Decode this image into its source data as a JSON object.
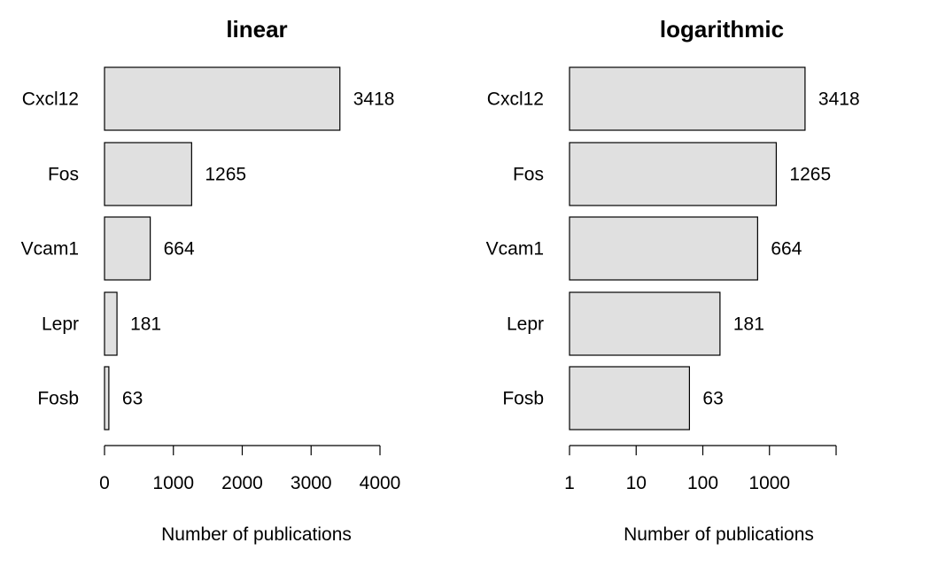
{
  "chart_data": [
    {
      "type": "bar",
      "orientation": "horizontal",
      "title": "linear",
      "scale": "linear",
      "categories": [
        "Cxcl12",
        "Fos",
        "Vcam1",
        "Lepr",
        "Fosb"
      ],
      "values": [
        3418,
        1265,
        664,
        181,
        63
      ],
      "value_labels": [
        "3418",
        "1265",
        "664",
        "181",
        "63"
      ],
      "xlim": [
        0,
        4000
      ],
      "xticks": [
        0,
        1000,
        2000,
        3000,
        4000
      ],
      "xtick_labels": [
        "0",
        "1000",
        "2000",
        "3000",
        "4000"
      ],
      "xlabel": "Number of publications",
      "ylabel": "",
      "grid": false,
      "bar_color": "#e0e0e0"
    },
    {
      "type": "bar",
      "orientation": "horizontal",
      "title": "logarithmic",
      "scale": "log",
      "categories": [
        "Cxcl12",
        "Fos",
        "Vcam1",
        "Lepr",
        "Fosb"
      ],
      "values": [
        3418,
        1265,
        664,
        181,
        63
      ],
      "value_labels": [
        "3418",
        "1265",
        "664",
        "181",
        "63"
      ],
      "xlim": [
        1,
        10000
      ],
      "xticks": [
        1,
        10,
        100,
        1000,
        10000
      ],
      "xtick_labels": [
        "1",
        "10",
        "100",
        "1000",
        ""
      ],
      "xlabel": "Number of publications",
      "ylabel": "",
      "grid": false,
      "bar_color": "#e0e0e0"
    }
  ]
}
